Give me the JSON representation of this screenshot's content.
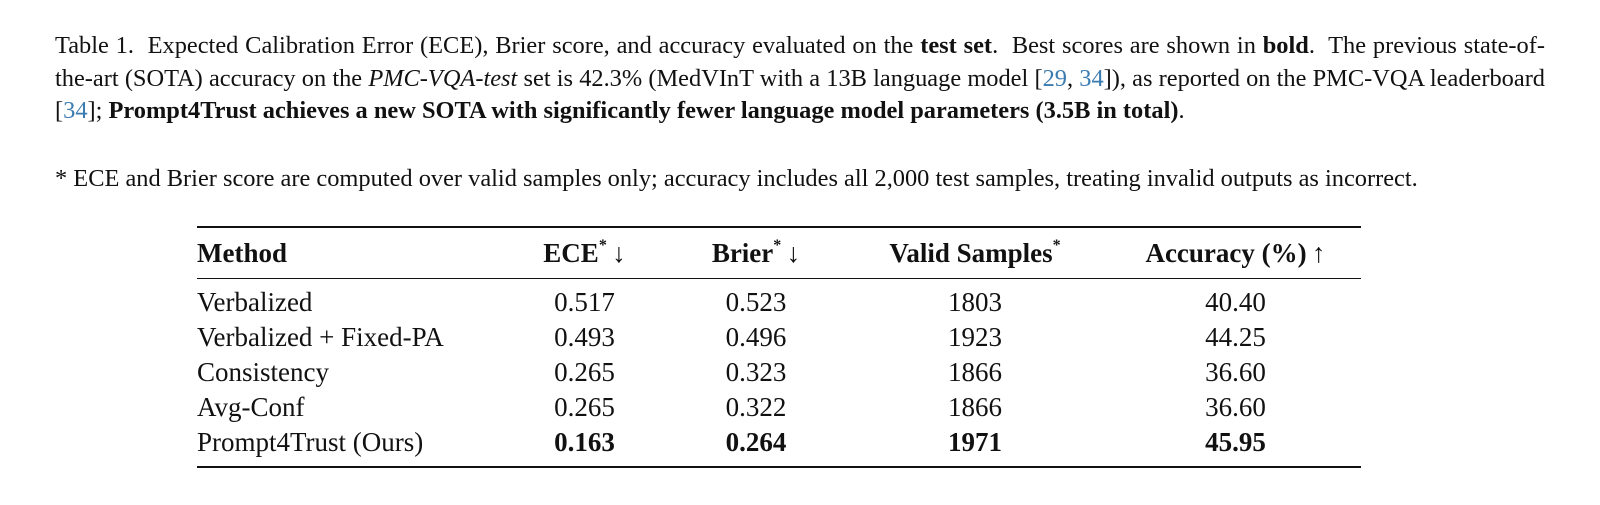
{
  "caption": {
    "label": "Table 1.",
    "s1_a": "Expected Calibration Error (ECE), Brier score, and accuracy evaluated on the ",
    "s1_b": "test set",
    "s1_c": ".",
    "s2_a": "Best scores are shown in ",
    "s2_b": "bold",
    "s2_c": ".",
    "s3_a": "The previous state-of-the-art (SOTA) accuracy on the ",
    "s3_italic": "PMC-VQA-test",
    "s3_b": " set is 42.3% (MedVInT with a 13B language model [",
    "cite_29": "29",
    "comma": ", ",
    "cite_34": "34",
    "s3_c": "]), as reported on the PMC-VQA leaderboard [",
    "cite_34b": "34",
    "s3_d": "]; ",
    "s3_bold": "Prompt4Trust achieves a new SOTA with significantly fewer language model parameters (3.5B in total)",
    "s3_e": ".",
    "note": "* ECE and Brier score are computed over valid samples only; accuracy includes all 2,000 test samples, treating invalid outputs as incorrect."
  },
  "table": {
    "headers": {
      "method": "Method",
      "ece": "ECE",
      "ece_sup": "*",
      "ece_arrow": "↓",
      "brier": "Brier",
      "brier_sup": "*",
      "brier_arrow": "↓",
      "valid": "Valid Samples",
      "valid_sup": "*",
      "acc": "Accuracy (%)",
      "acc_arrow": "↑"
    },
    "rows": [
      {
        "method": "Verbalized",
        "ece": "0.517",
        "brier": "0.523",
        "valid": "1803",
        "acc": "40.40",
        "best": false
      },
      {
        "method": "Verbalized + Fixed-PA",
        "ece": "0.493",
        "brier": "0.496",
        "valid": "1923",
        "acc": "44.25",
        "best": false
      },
      {
        "method": "Consistency",
        "ece": "0.265",
        "brier": "0.323",
        "valid": "1866",
        "acc": "36.60",
        "best": false
      },
      {
        "method": "Avg-Conf",
        "ece": "0.265",
        "brier": "0.322",
        "valid": "1866",
        "acc": "36.60",
        "best": false
      },
      {
        "method": "Prompt4Trust (Ours)",
        "ece": "0.163",
        "brier": "0.264",
        "valid": "1971",
        "acc": "45.95",
        "best": true
      }
    ]
  },
  "colors": {
    "text": "#111111",
    "citation": "#3a7bb0"
  }
}
